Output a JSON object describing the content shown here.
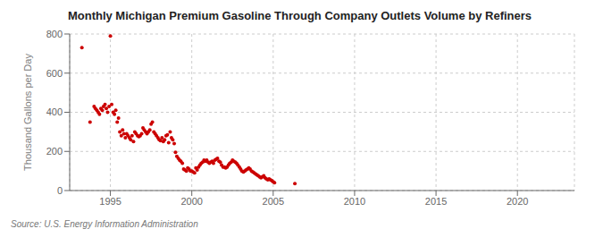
{
  "chart_data": {
    "type": "scatter",
    "title": "Monthly Michigan Premium Gasoline Through Company Outlets Volume by Refiners",
    "ylabel": "Thousand Gallons per Day",
    "annotations": [
      "Source: U.S. Energy Information Administration"
    ],
    "color": "#cc0000",
    "grid": true,
    "xlim": [
      1992.5,
      2023.5
    ],
    "xticks": [
      1995,
      2000,
      2005,
      2010,
      2015,
      2020
    ],
    "ylim": [
      0,
      800
    ],
    "yticks": [
      0,
      200,
      400,
      600,
      800
    ],
    "x": [
      1993.25,
      1993.75,
      1994.0,
      1994.08,
      1994.17,
      1994.25,
      1994.33,
      1994.42,
      1994.5,
      1994.58,
      1994.67,
      1994.75,
      1994.83,
      1994.92,
      1995.0,
      1995.08,
      1995.17,
      1995.25,
      1995.33,
      1995.42,
      1995.5,
      1995.58,
      1995.67,
      1995.75,
      1995.83,
      1995.92,
      1996.0,
      1996.08,
      1996.17,
      1996.25,
      1996.33,
      1996.42,
      1996.5,
      1996.58,
      1996.67,
      1996.75,
      1996.83,
      1996.92,
      1997.0,
      1997.08,
      1997.17,
      1997.25,
      1997.33,
      1997.42,
      1997.5,
      1997.58,
      1997.67,
      1997.75,
      1997.83,
      1997.92,
      1998.0,
      1998.08,
      1998.17,
      1998.25,
      1998.33,
      1998.42,
      1998.5,
      1998.58,
      1998.67,
      1998.75,
      1998.83,
      1998.92,
      1999.0,
      1999.08,
      1999.17,
      1999.25,
      1999.33,
      1999.42,
      1999.5,
      1999.58,
      1999.67,
      1999.75,
      1999.83,
      1999.92,
      2000.0,
      2000.08,
      2000.17,
      2000.25,
      2000.33,
      2000.42,
      2000.5,
      2000.58,
      2000.67,
      2000.75,
      2000.83,
      2000.92,
      2001.0,
      2001.08,
      2001.17,
      2001.25,
      2001.33,
      2001.42,
      2001.5,
      2001.58,
      2001.67,
      2001.75,
      2001.83,
      2001.92,
      2002.0,
      2002.08,
      2002.17,
      2002.25,
      2002.33,
      2002.42,
      2002.5,
      2002.58,
      2002.67,
      2002.75,
      2002.83,
      2002.92,
      2003.0,
      2003.08,
      2003.17,
      2003.25,
      2003.33,
      2003.42,
      2003.5,
      2003.58,
      2003.67,
      2003.75,
      2003.83,
      2003.92,
      2004.0,
      2004.08,
      2004.17,
      2004.25,
      2004.33,
      2004.42,
      2004.5,
      2004.58,
      2004.67,
      2004.75,
      2004.83,
      2004.92,
      2005.0,
      2005.08,
      2006.33
    ],
    "values": [
      730,
      350,
      430,
      420,
      410,
      400,
      390,
      420,
      410,
      430,
      440,
      420,
      400,
      430,
      790,
      440,
      400,
      390,
      410,
      350,
      370,
      300,
      280,
      310,
      290,
      270,
      290,
      280,
      270,
      260,
      280,
      250,
      300,
      290,
      280,
      275,
      280,
      290,
      320,
      310,
      300,
      290,
      300,
      310,
      340,
      350,
      300,
      290,
      280,
      270,
      260,
      255,
      270,
      250,
      260,
      280,
      285,
      245,
      300,
      270,
      260,
      240,
      195,
      175,
      165,
      155,
      150,
      140,
      110,
      105,
      100,
      115,
      110,
      100,
      100,
      95,
      90,
      115,
      105,
      120,
      130,
      140,
      145,
      155,
      150,
      155,
      145,
      140,
      145,
      150,
      140,
      155,
      160,
      165,
      150,
      145,
      130,
      120,
      120,
      115,
      120,
      130,
      140,
      145,
      155,
      150,
      145,
      140,
      130,
      120,
      110,
      100,
      95,
      100,
      105,
      110,
      115,
      110,
      100,
      95,
      90,
      85,
      80,
      75,
      70,
      65,
      70,
      75,
      65,
      60,
      55,
      60,
      55,
      50,
      45,
      40,
      35
    ]
  }
}
